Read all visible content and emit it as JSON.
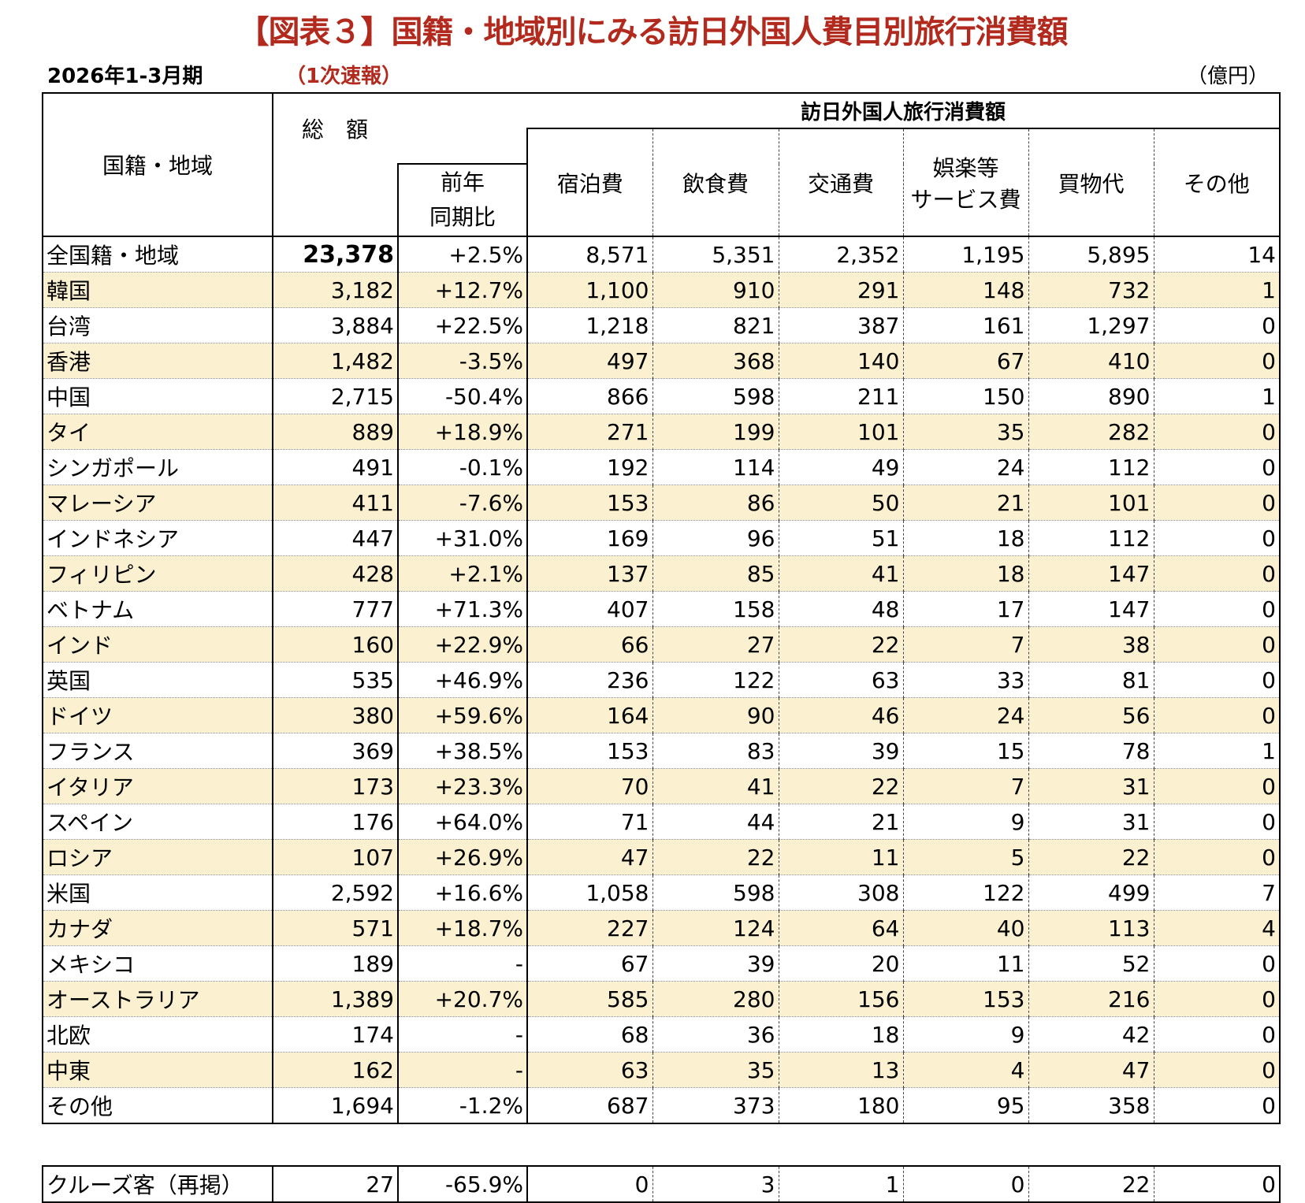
{
  "header": {
    "title": "【図表３】国籍・地域別にみる訪日外国人費目別旅行消費額",
    "period": "2026年1-3月期",
    "status": "（1次速報）",
    "unit": "（億円）"
  },
  "table": {
    "col_region": "国籍・地域",
    "col_total": "総　額",
    "col_yoy_line1": "前年",
    "col_yoy_line2": "同期比",
    "group_label": "訪日外国人旅行消費額",
    "col_lodging": "宿泊費",
    "col_food": "飲食費",
    "col_transport": "交通費",
    "col_entertainment_line1": "娯楽等",
    "col_entertainment_line2": "サービス費",
    "col_shopping": "買物代",
    "col_other": "その他",
    "rows": [
      [
        "全国籍・地域",
        "23,378",
        "+2.5%",
        "8,571",
        "5,351",
        "2,352",
        "1,195",
        "5,895",
        "14"
      ],
      [
        "韓国",
        "3,182",
        "+12.7%",
        "1,100",
        "910",
        "291",
        "148",
        "732",
        "1"
      ],
      [
        "台湾",
        "3,884",
        "+22.5%",
        "1,218",
        "821",
        "387",
        "161",
        "1,297",
        "0"
      ],
      [
        "香港",
        "1,482",
        "-3.5%",
        "497",
        "368",
        "140",
        "67",
        "410",
        "0"
      ],
      [
        "中国",
        "2,715",
        "-50.4%",
        "866",
        "598",
        "211",
        "150",
        "890",
        "1"
      ],
      [
        "タイ",
        "889",
        "+18.9%",
        "271",
        "199",
        "101",
        "35",
        "282",
        "0"
      ],
      [
        "シンガポール",
        "491",
        "-0.1%",
        "192",
        "114",
        "49",
        "24",
        "112",
        "0"
      ],
      [
        "マレーシア",
        "411",
        "-7.6%",
        "153",
        "86",
        "50",
        "21",
        "101",
        "0"
      ],
      [
        "インドネシア",
        "447",
        "+31.0%",
        "169",
        "96",
        "51",
        "18",
        "112",
        "0"
      ],
      [
        "フィリピン",
        "428",
        "+2.1%",
        "137",
        "85",
        "41",
        "18",
        "147",
        "0"
      ],
      [
        "ベトナム",
        "777",
        "+71.3%",
        "407",
        "158",
        "48",
        "17",
        "147",
        "0"
      ],
      [
        "インド",
        "160",
        "+22.9%",
        "66",
        "27",
        "22",
        "7",
        "38",
        "0"
      ],
      [
        "英国",
        "535",
        "+46.9%",
        "236",
        "122",
        "63",
        "33",
        "81",
        "0"
      ],
      [
        "ドイツ",
        "380",
        "+59.6%",
        "164",
        "90",
        "46",
        "24",
        "56",
        "0"
      ],
      [
        "フランス",
        "369",
        "+38.5%",
        "153",
        "83",
        "39",
        "15",
        "78",
        "1"
      ],
      [
        "イタリア",
        "173",
        "+23.3%",
        "70",
        "41",
        "22",
        "7",
        "31",
        "0"
      ],
      [
        "スペイン",
        "176",
        "+64.0%",
        "71",
        "44",
        "21",
        "9",
        "31",
        "0"
      ],
      [
        "ロシア",
        "107",
        "+26.9%",
        "47",
        "22",
        "11",
        "5",
        "22",
        "0"
      ],
      [
        "米国",
        "2,592",
        "+16.6%",
        "1,058",
        "598",
        "308",
        "122",
        "499",
        "7"
      ],
      [
        "カナダ",
        "571",
        "+18.7%",
        "227",
        "124",
        "64",
        "40",
        "113",
        "4"
      ],
      [
        "メキシコ",
        "189",
        "-",
        "67",
        "39",
        "20",
        "11",
        "52",
        "0"
      ],
      [
        "オーストラリア",
        "1,389",
        "+20.7%",
        "585",
        "280",
        "156",
        "153",
        "216",
        "0"
      ],
      [
        "北欧",
        "174",
        "-",
        "68",
        "36",
        "18",
        "9",
        "42",
        "0"
      ],
      [
        "中東",
        "162",
        "-",
        "63",
        "35",
        "13",
        "4",
        "47",
        "0"
      ],
      [
        "その他",
        "1,694",
        "-1.2%",
        "687",
        "373",
        "180",
        "95",
        "358",
        "0"
      ]
    ],
    "cruise_row": [
      "クルーズ客（再掲）",
      "27",
      "-65.9%",
      "0",
      "3",
      "1",
      "0",
      "22",
      "0"
    ]
  },
  "colors": {
    "title": "#b22a1e",
    "alt_row": "#fbf0d0"
  }
}
